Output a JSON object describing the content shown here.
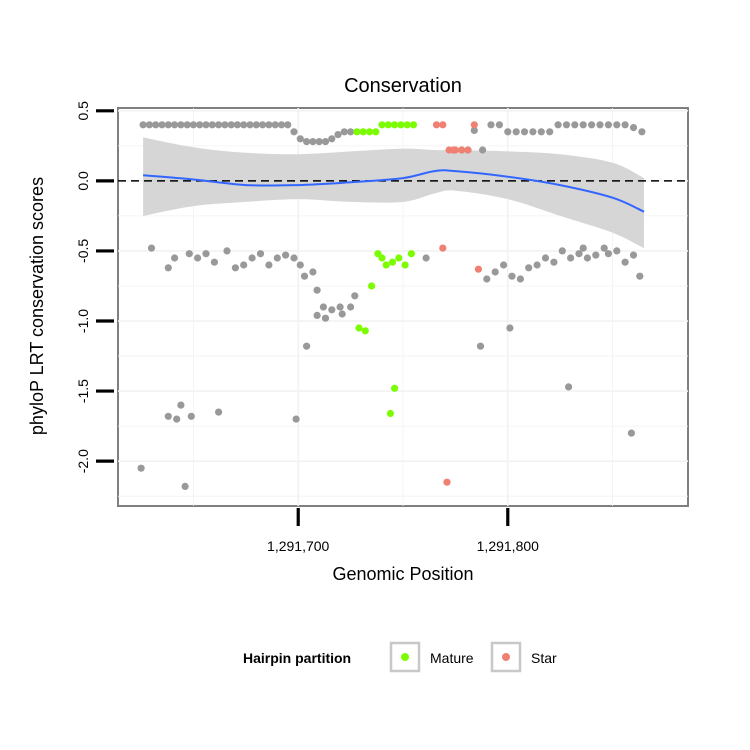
{
  "chart_data": {
    "type": "scatter",
    "title": "Conservation",
    "xlabel": "Genomic Position",
    "ylabel": "phyloP LRT conservation scores",
    "xlim": [
      1291614,
      1291886
    ],
    "ylim": [
      -2.32,
      0.52
    ],
    "x_ticks": [
      {
        "value": 1291700,
        "label": "1,291,700"
      },
      {
        "value": 1291800,
        "label": "1,291,800"
      }
    ],
    "y_ticks": [
      {
        "value": 0.5,
        "label": "0.5"
      },
      {
        "value": 0.0,
        "label": "0.0"
      },
      {
        "value": -0.5,
        "label": "-0.5"
      },
      {
        "value": -1.0,
        "label": "-1.0"
      },
      {
        "value": -1.5,
        "label": "-1.5"
      },
      {
        "value": -2.0,
        "label": "-2.0"
      }
    ],
    "grid": true,
    "reference_line": {
      "y": 0,
      "style": "dashed"
    },
    "legend": {
      "title": "Hairpin partition",
      "position": "bottom",
      "entries": [
        {
          "name": "Mature",
          "color": "#7CFC00"
        },
        {
          "name": "Star",
          "color": "#F08072"
        }
      ]
    },
    "colors": {
      "other": "#999999",
      "mature": "#7CFC00",
      "star": "#F08072",
      "smooth": "#3366FF",
      "band": "#d4d4d4"
    },
    "smooth": {
      "x": [
        1291626,
        1291650,
        1291675,
        1291700,
        1291725,
        1291750,
        1291765,
        1291775,
        1291800,
        1291825,
        1291850,
        1291865
      ],
      "y": [
        0.04,
        0.01,
        -0.03,
        -0.03,
        -0.01,
        0.02,
        0.07,
        0.07,
        0.03,
        -0.03,
        -0.12,
        -0.22
      ],
      "upper": [
        0.31,
        0.24,
        0.2,
        0.19,
        0.21,
        0.23,
        0.22,
        0.22,
        0.21,
        0.19,
        0.13,
        0.02
      ],
      "lower": [
        -0.25,
        -0.18,
        -0.15,
        -0.13,
        -0.15,
        -0.15,
        -0.09,
        -0.07,
        -0.13,
        -0.25,
        -0.37,
        -0.48
      ]
    },
    "series": [
      {
        "group": "other",
        "x": [
          1291626,
          1291629,
          1291632,
          1291635,
          1291638,
          1291641,
          1291644,
          1291647,
          1291650,
          1291653,
          1291656,
          1291659,
          1291662,
          1291665,
          1291668,
          1291671,
          1291674,
          1291677,
          1291680,
          1291683,
          1291686,
          1291689,
          1291692,
          1291695,
          1291698,
          1291701,
          1291704,
          1291707,
          1291710,
          1291713,
          1291716,
          1291719,
          1291722,
          1291725,
          1291778,
          1291781,
          1291784,
          1291788,
          1291792,
          1291796,
          1291800,
          1291804,
          1291808,
          1291812,
          1291816,
          1291820,
          1291824,
          1291828,
          1291832,
          1291836,
          1291840,
          1291844,
          1291848,
          1291852,
          1291856,
          1291860,
          1291864,
          1291630,
          1291638,
          1291641,
          1291648,
          1291652,
          1291656,
          1291660,
          1291666,
          1291670,
          1291674,
          1291678,
          1291682,
          1291686,
          1291690,
          1291694,
          1291698,
          1291701,
          1291703,
          1291707,
          1291709,
          1291712,
          1291716,
          1291721,
          1291725,
          1291761,
          1291790,
          1291794,
          1291798,
          1291802,
          1291806,
          1291810,
          1291814,
          1291818,
          1291822,
          1291826,
          1291830,
          1291834,
          1291836,
          1291838,
          1291842,
          1291846,
          1291848,
          1291852,
          1291856,
          1291860,
          1291863,
          1291625,
          1291638,
          1291642,
          1291644,
          1291646,
          1291649,
          1291662,
          1291699,
          1291704,
          1291709,
          1291713,
          1291720,
          1291727,
          1291787,
          1291801,
          1291829,
          1291859
        ],
        "y": [
          0.4,
          0.4,
          0.4,
          0.4,
          0.4,
          0.4,
          0.4,
          0.4,
          0.4,
          0.4,
          0.4,
          0.4,
          0.4,
          0.4,
          0.4,
          0.4,
          0.4,
          0.4,
          0.4,
          0.4,
          0.4,
          0.4,
          0.4,
          0.4,
          0.35,
          0.3,
          0.28,
          0.28,
          0.28,
          0.28,
          0.3,
          0.33,
          0.35,
          0.35,
          0.22,
          0.22,
          0.36,
          0.22,
          0.4,
          0.4,
          0.35,
          0.35,
          0.35,
          0.35,
          0.35,
          0.35,
          0.4,
          0.4,
          0.4,
          0.4,
          0.4,
          0.4,
          0.4,
          0.4,
          0.4,
          0.38,
          0.35,
          -0.48,
          -0.62,
          -0.55,
          -0.52,
          -0.55,
          -0.52,
          -0.58,
          -0.5,
          -0.62,
          -0.6,
          -0.55,
          -0.52,
          -0.6,
          -0.55,
          -0.53,
          -0.55,
          -0.6,
          -0.68,
          -0.65,
          -0.78,
          -0.9,
          -0.92,
          -0.95,
          -0.9,
          -0.55,
          -0.7,
          -0.65,
          -0.6,
          -0.68,
          -0.7,
          -0.62,
          -0.6,
          -0.55,
          -0.58,
          -0.5,
          -0.55,
          -0.52,
          -0.48,
          -0.55,
          -0.53,
          -0.48,
          -0.52,
          -0.5,
          -0.58,
          -0.53,
          -0.68,
          -2.05,
          -1.68,
          -1.7,
          -1.6,
          -2.18,
          -1.68,
          -1.65,
          -1.7,
          -1.18,
          -0.96,
          -0.98,
          -0.9,
          -0.82,
          -1.18,
          -1.05,
          -1.47,
          -1.8
        ]
      },
      {
        "group": "mature",
        "x": [
          1291728,
          1291731,
          1291734,
          1291737,
          1291740,
          1291743,
          1291746,
          1291749,
          1291752,
          1291755,
          1291735,
          1291738,
          1291740,
          1291742,
          1291745,
          1291748,
          1291751,
          1291754,
          1291729,
          1291732,
          1291744,
          1291746
        ],
        "y": [
          0.35,
          0.35,
          0.35,
          0.35,
          0.4,
          0.4,
          0.4,
          0.4,
          0.4,
          0.4,
          -0.75,
          -0.52,
          -0.55,
          -0.6,
          -0.58,
          -0.55,
          -0.6,
          -0.52,
          -1.05,
          -1.07,
          -1.66,
          -1.48
        ]
      },
      {
        "group": "star",
        "x": [
          1291766,
          1291769,
          1291772,
          1291775,
          1291778,
          1291781,
          1291784,
          1291769,
          1291786,
          1291771,
          1291774
        ],
        "y": [
          0.4,
          0.4,
          0.22,
          0.22,
          0.22,
          0.22,
          0.4,
          -0.48,
          -0.63,
          -2.15,
          0.22
        ]
      }
    ]
  }
}
